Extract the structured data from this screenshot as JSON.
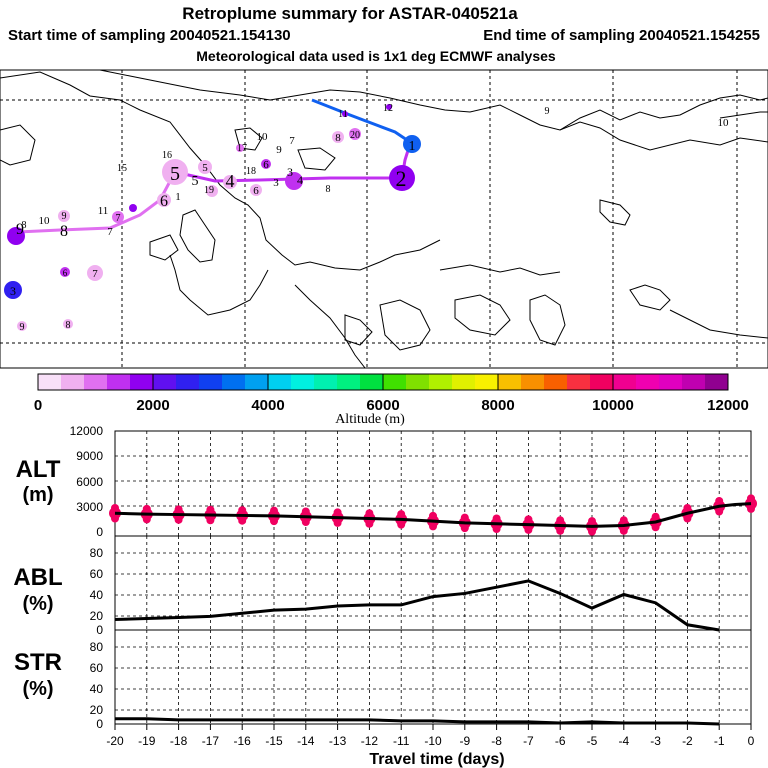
{
  "header": {
    "title": "Retroplume summary for ASTAR-040521a",
    "start_label": "Start time of sampling 20040521.154130",
    "end_label": "End time of sampling 20040521.154255",
    "met_label": "Meteorological data used is 1x1 deg ECMWF analyses"
  },
  "colorbar": {
    "colors": [
      "#f8e0f8",
      "#f0b0f0",
      "#e070f0",
      "#c030f0",
      "#9000f0",
      "#6010f0",
      "#3020f0",
      "#1040f0",
      "#0070f0",
      "#00a0f0",
      "#00d0f0",
      "#00f0e0",
      "#00f0b0",
      "#00f080",
      "#00e040",
      "#40e000",
      "#80e000",
      "#b0f000",
      "#e0f000",
      "#f8f000",
      "#f8c000",
      "#f89000",
      "#f86000",
      "#f83040",
      "#f00060",
      "#f00090",
      "#f000b0",
      "#e000c0",
      "#c000b0",
      "#900090"
    ],
    "tick_labels": [
      "0",
      "2000",
      "4000",
      "6000",
      "8000",
      "10000",
      "12000"
    ],
    "axis_label": "Altitude (m)"
  },
  "map_labels": [
    {
      "t": "1",
      "c": "#1060f0"
    },
    {
      "t": "2",
      "c": "#9000f0"
    },
    {
      "t": "3",
      "c": "#c030f0"
    },
    {
      "t": "4",
      "c": "#e070f0"
    },
    {
      "t": "5",
      "c": "#f0b0f0"
    },
    {
      "t": "6",
      "c": "#e070f0"
    },
    {
      "t": "7",
      "c": "#c030f0"
    },
    {
      "t": "8",
      "c": "#c030f0"
    },
    {
      "t": "9",
      "c": "#9000f0"
    },
    {
      "t": "1",
      "c": "#6010f0"
    },
    {
      "t": "12",
      "c": "#9000f0"
    },
    {
      "t": "11",
      "c": "#9000f0"
    },
    {
      "t": "9",
      "c": "#f0b0f0"
    },
    {
      "t": "10",
      "c": "#f0b0f0"
    },
    {
      "t": "8",
      "c": "#e070f0"
    },
    {
      "t": "10",
      "c": "#f0b0f0"
    },
    {
      "t": "9",
      "c": "#f0b0f0"
    },
    {
      "t": "7",
      "c": "#f0b0f0"
    },
    {
      "t": "17",
      "c": "#e070f0"
    },
    {
      "t": "18",
      "c": "#e070f0"
    },
    {
      "t": "6",
      "c": "#c030f0"
    },
    {
      "t": "16",
      "c": "#f0b0f0"
    },
    {
      "t": "5",
      "c": "#f0b0f0"
    },
    {
      "t": "19",
      "c": "#e070f0"
    },
    {
      "t": "6",
      "c": "#f0b0f0"
    },
    {
      "t": "15",
      "c": "#e070f0"
    },
    {
      "t": "5",
      "c": "#f0b0f0"
    },
    {
      "t": "10",
      "c": "#f0b0f0"
    },
    {
      "t": "11",
      "c": "#f0b0f0"
    },
    {
      "t": "9",
      "c": "#f0b0f0"
    },
    {
      "t": "8",
      "c": "#f0b0f0"
    },
    {
      "t": "7",
      "c": "#f0b0f0"
    },
    {
      "t": "6",
      "c": "#c030f0"
    },
    {
      "t": "7",
      "c": "#f0b0f0"
    },
    {
      "t": "9",
      "c": "#f0b0f0"
    },
    {
      "t": "8",
      "c": "#f0b0f0"
    },
    {
      "t": "3",
      "c": "#6010f0"
    },
    {
      "t": "20",
      "c": "#e070f0"
    },
    {
      "t": "4",
      "c": "#e070f0"
    },
    {
      "t": "3",
      "c": "#e070f0"
    },
    {
      "t": "8",
      "c": "#3020f0"
    }
  ],
  "panels": {
    "alt": {
      "label_top": "ALT",
      "label_bottom": "(m)",
      "ticks": [
        "12000",
        "9000",
        "6000",
        "3000",
        "0"
      ]
    },
    "abl": {
      "label_top": "ABL",
      "label_bottom": "(%)",
      "ticks": [
        "80",
        "60",
        "40",
        "20",
        "0"
      ]
    },
    "str": {
      "label_top": "STR",
      "label_bottom": "(%)",
      "ticks": [
        "80",
        "60",
        "40",
        "20",
        "0"
      ]
    }
  },
  "x_ticks": [
    "-20",
    "-19",
    "-18",
    "-17",
    "-16",
    "-15",
    "-14",
    "-13",
    "-12",
    "-11",
    "-10",
    "-9",
    "-8",
    "-7",
    "-6",
    "-5",
    "-4",
    "-3",
    "-2",
    "-1",
    "0"
  ],
  "x_axis_label": "Travel time (days)",
  "chart_data": [
    {
      "type": "line",
      "title": "ALT",
      "ylabel": "ALT (m)",
      "xlabel": "Travel time (days)",
      "ylim": [
        0,
        12000
      ],
      "xlim": [
        -20,
        0
      ],
      "x": [
        -20,
        -19,
        -18,
        -17,
        -16,
        -15,
        -14,
        -13,
        -12,
        -11,
        -10,
        -9,
        -8,
        -7,
        -6,
        -5,
        -4,
        -3,
        -2,
        -1,
        -0.5,
        0
      ],
      "values": [
        2600,
        2500,
        2450,
        2400,
        2350,
        2300,
        2200,
        2100,
        2000,
        1900,
        1700,
        1500,
        1400,
        1300,
        1200,
        1100,
        1200,
        1600,
        2600,
        3400,
        3600,
        3700
      ]
    },
    {
      "type": "line",
      "title": "ABL",
      "ylabel": "ABL (%)",
      "xlabel": "Travel time (days)",
      "ylim": [
        0,
        90
      ],
      "xlim": [
        -20,
        0
      ],
      "x": [
        -20,
        -19,
        -18,
        -17,
        -16,
        -15,
        -14,
        -13,
        -12,
        -11,
        -10,
        -9,
        -8,
        -7,
        -6,
        -5,
        -4,
        -3,
        -2,
        -1
      ],
      "values": [
        10,
        11,
        12,
        13,
        16,
        19,
        20,
        23,
        24,
        24,
        32,
        35,
        41,
        47,
        35,
        21,
        34,
        26,
        5,
        0
      ]
    },
    {
      "type": "line",
      "title": "STR",
      "ylabel": "STR (%)",
      "xlabel": "Travel time (days)",
      "ylim": [
        0,
        90
      ],
      "xlim": [
        -20,
        0
      ],
      "x": [
        -20,
        -19,
        -18,
        -17,
        -16,
        -15,
        -14,
        -13,
        -12,
        -11,
        -10,
        -9,
        -8,
        -7,
        -6,
        -5,
        -4,
        -3,
        -2,
        -1
      ],
      "values": [
        5,
        5,
        4,
        4,
        4,
        4,
        4,
        4,
        4,
        3,
        3,
        2,
        2,
        2,
        1,
        2,
        1,
        1,
        1,
        0
      ]
    }
  ]
}
